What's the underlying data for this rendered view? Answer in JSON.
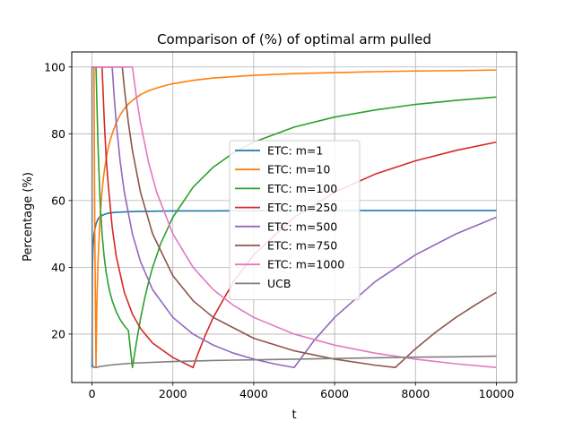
{
  "chart_data": {
    "type": "line",
    "title": "Comparison of (%) of optimal arm pulled",
    "xlabel": "t",
    "ylabel": "Percentage (%)",
    "xlim": [
      -500,
      10500
    ],
    "ylim": [
      5.5,
      104.5
    ],
    "xticks": [
      0,
      2000,
      4000,
      6000,
      8000,
      10000
    ],
    "xtick_labels": [
      "0",
      "2000",
      "4000",
      "6000",
      "8000",
      "10000"
    ],
    "yticks": [
      20,
      40,
      60,
      80,
      100
    ],
    "ytick_labels": [
      "20",
      "40",
      "60",
      "80",
      "100"
    ],
    "grid": true,
    "legend_placement": "center-right",
    "series": [
      {
        "name": "ETC: m=1",
        "color": "#1f77b4",
        "x": [
          0,
          10,
          25,
          50,
          100,
          150,
          200,
          300,
          400,
          600,
          800,
          1000,
          1500,
          2000,
          3000,
          4000,
          6000,
          8000,
          10000
        ],
        "y": [
          10,
          38,
          46,
          50,
          53,
          54.5,
          55.2,
          55.8,
          56.2,
          56.5,
          56.6,
          56.7,
          56.8,
          56.9,
          56.9,
          57,
          57,
          57,
          57
        ]
      },
      {
        "name": "ETC: m=10",
        "color": "#ff7f0e",
        "x": [
          0,
          20,
          50,
          70,
          100,
          120,
          150,
          200,
          250,
          300,
          350,
          400,
          450,
          500,
          600,
          700,
          800,
          900,
          1000,
          1200,
          1400,
          1600,
          1800,
          2000,
          2500,
          3000,
          3500,
          4000,
          5000,
          6000,
          7000,
          8000,
          9000,
          10000
        ],
        "y": [
          100,
          100,
          100,
          50,
          10,
          28,
          42,
          55,
          63,
          68.5,
          72.5,
          75.7,
          78,
          80,
          83.3,
          85.7,
          87.5,
          88.9,
          90,
          91.7,
          92.9,
          93.7,
          94.4,
          95,
          96,
          96.7,
          97.1,
          97.5,
          98,
          98.3,
          98.6,
          98.8,
          98.9,
          99.1
        ]
      },
      {
        "name": "ETC: m=100",
        "color": "#2ca02c",
        "x": [
          0,
          10,
          100,
          150,
          200,
          250,
          300,
          350,
          400,
          450,
          500,
          600,
          700,
          800,
          900,
          1000,
          1100,
          1200,
          1300,
          1400,
          1500,
          1700,
          2000,
          2500,
          3000,
          3500,
          4000,
          5000,
          6000,
          7000,
          8000,
          9000,
          10000
        ],
        "y": [
          100,
          100,
          100,
          76,
          60,
          50,
          43.3,
          38.6,
          35,
          32.2,
          30,
          26.7,
          24.3,
          22.5,
          21.1,
          10,
          17.6,
          24.6,
          30.5,
          35.6,
          40,
          47.1,
          55,
          64,
          70,
          74.3,
          77.5,
          82,
          85,
          87.1,
          88.8,
          90,
          91
        ]
      },
      {
        "name": "ETC: m=250",
        "color": "#d62728",
        "x": [
          0,
          250,
          300,
          350,
          400,
          500,
          600,
          800,
          1000,
          1200,
          1500,
          2000,
          2500,
          2600,
          2800,
          3000,
          3500,
          4000,
          5000,
          6000,
          7000,
          8000,
          9000,
          10000
        ],
        "y": [
          100,
          100,
          85,
          73,
          65,
          52,
          43.3,
          32.5,
          26,
          21.7,
          17.3,
          13,
          10,
          13.5,
          19.6,
          25,
          35.7,
          43.75,
          55,
          62.5,
          67.9,
          71.9,
          75,
          77.5
        ]
      },
      {
        "name": "ETC: m=500",
        "color": "#9467bd",
        "x": [
          0,
          500,
          550,
          600,
          700,
          800,
          1000,
          1200,
          1500,
          2000,
          2500,
          3000,
          3500,
          4000,
          4500,
          5000,
          5500,
          6000,
          7000,
          8000,
          9000,
          10000
        ],
        "y": [
          100,
          100,
          91,
          83.3,
          71.4,
          62.5,
          50,
          41.7,
          33.3,
          25,
          20,
          16.7,
          14.3,
          12.5,
          11.1,
          10,
          18.2,
          25,
          35.7,
          43.75,
          50,
          55
        ]
      },
      {
        "name": "ETC: m=750",
        "color": "#8c564b",
        "x": [
          0,
          750,
          800,
          900,
          1000,
          1200,
          1500,
          2000,
          2500,
          3000,
          4000,
          5000,
          6000,
          7000,
          7500,
          8000,
          8500,
          9000,
          9500,
          10000
        ],
        "y": [
          100,
          100,
          93.75,
          83.3,
          75,
          62.5,
          50,
          37.5,
          30,
          25,
          18.75,
          15,
          12.5,
          10.7,
          10,
          15.6,
          20.6,
          25,
          28.9,
          32.5
        ]
      },
      {
        "name": "ETC: m=1000",
        "color": "#e377c2",
        "x": [
          0,
          1000,
          1100,
          1200,
          1400,
          1600,
          2000,
          2500,
          3000,
          3500,
          4000,
          5000,
          6000,
          7000,
          8000,
          9000,
          10000
        ],
        "y": [
          100,
          100,
          90.9,
          83.3,
          71.4,
          62.5,
          50,
          40,
          33.3,
          28.6,
          25,
          20,
          16.7,
          14.3,
          12.5,
          11.1,
          10
        ]
      },
      {
        "name": "UCB",
        "color": "#7f7f7f",
        "x": [
          0,
          5,
          10,
          30,
          60,
          100,
          200,
          500,
          1000,
          2000,
          3000,
          4000,
          5000,
          6000,
          7000,
          8000,
          9000,
          10000
        ],
        "y": [
          100,
          40,
          11,
          10.2,
          10,
          10,
          10.3,
          10.8,
          11.3,
          11.8,
          12.1,
          12.3,
          12.5,
          12.7,
          12.9,
          13.1,
          13.2,
          13.4
        ]
      }
    ]
  }
}
